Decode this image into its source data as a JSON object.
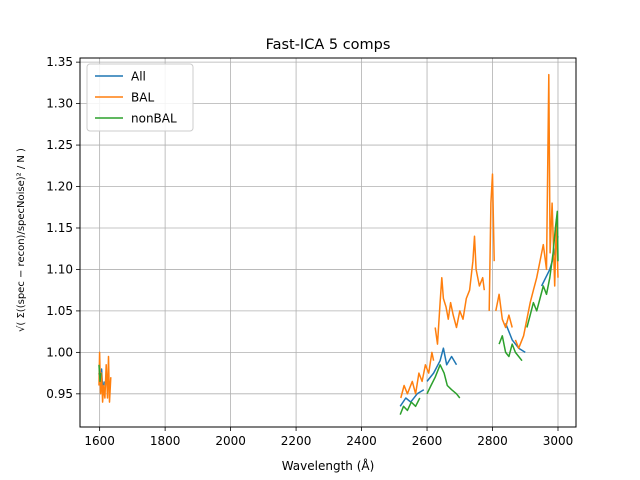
{
  "chart_data": {
    "type": "line",
    "title": "Fast-ICA 5 comps",
    "xlabel": "Wavelength (Å)",
    "ylabel": "√( Σ((spec − recon)/specNoise)² / N )",
    "xlim": [
      1540,
      3055
    ],
    "ylim": [
      0.91,
      1.355
    ],
    "xticks": [
      1600,
      1800,
      2000,
      2200,
      2400,
      2600,
      2800,
      3000
    ],
    "yticks": [
      0.95,
      1.0,
      1.05,
      1.1,
      1.15,
      1.2,
      1.25,
      1.3,
      1.35
    ],
    "grid": true,
    "legend_position": "top-left",
    "series": [
      {
        "name": "All",
        "color": "#1f77b4",
        "segments": [
          [
            [
              1598,
              0.975
            ],
            [
              1602,
              0.96
            ],
            [
              1606,
              0.98
            ],
            [
              1610,
              0.95
            ],
            [
              1614,
              0.965
            ]
          ],
          [
            [
              2518,
              0.935
            ],
            [
              2535,
              0.945
            ],
            [
              2550,
              0.94
            ],
            [
              2570,
              0.95
            ],
            [
              2590,
              0.955
            ]
          ],
          [
            [
              2600,
              0.965
            ],
            [
              2620,
              0.975
            ],
            [
              2640,
              0.99
            ],
            [
              2650,
              1.005
            ],
            [
              2660,
              0.985
            ],
            [
              2675,
              0.995
            ],
            [
              2690,
              0.985
            ]
          ],
          [
            [
              2840,
              1.035
            ],
            [
              2860,
              1.015
            ],
            [
              2880,
              1.005
            ],
            [
              2900,
              1.0
            ]
          ],
          [
            [
              2950,
              1.08
            ],
            [
              2975,
              1.1
            ],
            [
              2990,
              1.12
            ],
            [
              3000,
              1.14
            ]
          ]
        ]
      },
      {
        "name": "BAL",
        "color": "#ff7f0e",
        "segments": [
          [
            [
              1598,
              0.96
            ],
            [
              1600,
              1.0
            ],
            [
              1603,
              0.95
            ],
            [
              1606,
              0.975
            ],
            [
              1609,
              0.94
            ],
            [
              1612,
              0.96
            ],
            [
              1616,
              0.945
            ],
            [
              1620,
              0.985
            ],
            [
              1624,
              0.945
            ],
            [
              1627,
              0.995
            ],
            [
              1630,
              0.94
            ],
            [
              1634,
              0.97
            ]
          ],
          [
            [
              2520,
              0.945
            ],
            [
              2530,
              0.96
            ],
            [
              2540,
              0.95
            ],
            [
              2555,
              0.965
            ],
            [
              2565,
              0.95
            ],
            [
              2575,
              0.975
            ],
            [
              2585,
              0.965
            ],
            [
              2595,
              0.985
            ],
            [
              2605,
              0.975
            ],
            [
              2615,
              1.0
            ],
            [
              2620,
              0.99
            ]
          ],
          [
            [
              2625,
              1.03
            ],
            [
              2632,
              1.01
            ],
            [
              2640,
              1.06
            ],
            [
              2645,
              1.09
            ],
            [
              2650,
              1.065
            ],
            [
              2658,
              1.055
            ],
            [
              2665,
              1.04
            ],
            [
              2672,
              1.06
            ],
            [
              2680,
              1.045
            ],
            [
              2690,
              1.03
            ],
            [
              2700,
              1.05
            ],
            [
              2710,
              1.04
            ],
            [
              2720,
              1.065
            ],
            [
              2730,
              1.075
            ],
            [
              2740,
              1.11
            ],
            [
              2745,
              1.14
            ],
            [
              2750,
              1.1
            ],
            [
              2760,
              1.08
            ],
            [
              2770,
              1.09
            ],
            [
              2775,
              1.075
            ]
          ],
          [
            [
              2790,
              1.05
            ],
            [
              2795,
              1.18
            ],
            [
              2800,
              1.215
            ],
            [
              2805,
              1.11
            ]
          ],
          [
            [
              2810,
              1.05
            ],
            [
              2820,
              1.07
            ],
            [
              2830,
              1.04
            ],
            [
              2840,
              1.03
            ],
            [
              2850,
              1.045
            ],
            [
              2860,
              1.03
            ]
          ],
          [
            [
              2870,
              1.015
            ],
            [
              2880,
              1.005
            ],
            [
              2895,
              1.02
            ],
            [
              2905,
              1.04
            ],
            [
              2915,
              1.06
            ],
            [
              2925,
              1.075
            ],
            [
              2935,
              1.09
            ],
            [
              2945,
              1.11
            ],
            [
              2955,
              1.13
            ],
            [
              2965,
              1.1
            ],
            [
              2972,
              1.335
            ],
            [
              2976,
              1.12
            ],
            [
              2982,
              1.18
            ],
            [
              2990,
              1.08
            ],
            [
              2995,
              1.16
            ],
            [
              3000,
              1.09
            ]
          ]
        ]
      },
      {
        "name": "nonBAL",
        "color": "#2ca02c",
        "segments": [
          [
            [
              1598,
              0.985
            ],
            [
              1601,
              0.965
            ],
            [
              1604,
              0.975
            ]
          ],
          [
            [
              2518,
              0.925
            ],
            [
              2528,
              0.935
            ],
            [
              2540,
              0.93
            ],
            [
              2552,
              0.94
            ],
            [
              2565,
              0.935
            ],
            [
              2578,
              0.945
            ]
          ],
          [
            [
              2600,
              0.95
            ],
            [
              2612,
              0.96
            ],
            [
              2625,
              0.97
            ],
            [
              2640,
              0.985
            ],
            [
              2652,
              0.975
            ],
            [
              2662,
              0.96
            ],
            [
              2675,
              0.955
            ],
            [
              2690,
              0.95
            ],
            [
              2700,
              0.945
            ]
          ],
          [
            [
              2820,
              1.01
            ],
            [
              2830,
              1.02
            ],
            [
              2840,
              1.0
            ],
            [
              2850,
              0.995
            ],
            [
              2860,
              1.01
            ],
            [
              2870,
              1.0
            ],
            [
              2880,
              0.995
            ],
            [
              2890,
              0.99
            ]
          ],
          [
            [
              2905,
              1.03
            ],
            [
              2915,
              1.045
            ],
            [
              2925,
              1.06
            ],
            [
              2935,
              1.05
            ],
            [
              2945,
              1.065
            ],
            [
              2955,
              1.08
            ],
            [
              2965,
              1.07
            ],
            [
              2975,
              1.09
            ],
            [
              2985,
              1.12
            ],
            [
              2992,
              1.15
            ],
            [
              2998,
              1.17
            ],
            [
              3000,
              1.11
            ]
          ]
        ]
      }
    ]
  }
}
